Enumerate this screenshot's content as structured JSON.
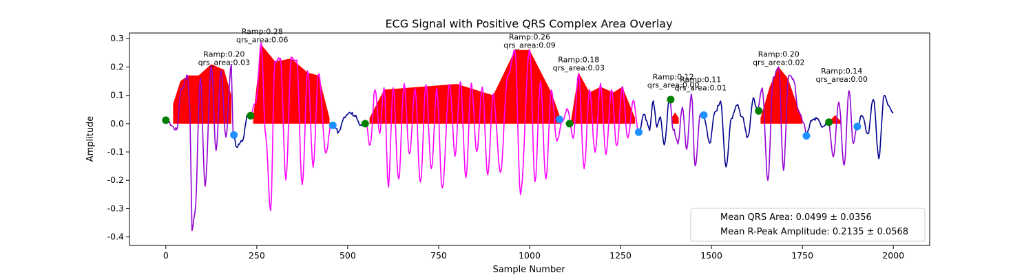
{
  "chart_data": {
    "type": "line",
    "title": "ECG Signal with Positive QRS Complex Area Overlay",
    "xlabel": "Sample Number",
    "ylabel": "Amplitude",
    "xlim": [
      -100,
      2100
    ],
    "ylim": [
      -0.43,
      0.32
    ],
    "xticks": [
      0,
      250,
      500,
      750,
      1000,
      1250,
      1500,
      1750,
      2000
    ],
    "yticks": [
      -0.4,
      -0.3,
      -0.2,
      -0.1,
      0.0,
      0.1,
      0.2,
      0.3
    ],
    "grid": false,
    "colors": {
      "baseline_signal": "#00008b",
      "qrs_segment": "#9400d3",
      "qrs_segment_alt": "#ff00ff",
      "positive_area": "#ff0000",
      "onset_marker": "#008000",
      "offset_marker": "#1e90ff"
    },
    "segments": [
      {
        "start": 0,
        "end": 185,
        "color": "#9400d3",
        "peaks": [
          [
            0,
            0.01
          ],
          [
            30,
            -0.02
          ],
          [
            42,
            0.12
          ],
          [
            60,
            0.17
          ],
          [
            66,
            0.05
          ],
          [
            72,
            -0.38
          ],
          [
            80,
            -0.31
          ],
          [
            95,
            0.16
          ],
          [
            108,
            -0.22
          ],
          [
            125,
            0.21
          ],
          [
            138,
            -0.1
          ],
          [
            152,
            0.19
          ],
          [
            165,
            -0.05
          ],
          [
            180,
            0.21
          ],
          [
            185,
            -0.04
          ]
        ],
        "onset": [
          0,
          0.012
        ],
        "offset": [
          187,
          -0.04
        ],
        "annotation": {
          "x": 160,
          "y": 0.2,
          "ramp": "Ramp:0.20",
          "area": "qrs_area:0.03"
        },
        "fill": [
          [
            20,
            0.07
          ],
          [
            40,
            0.15
          ],
          [
            62,
            0.17
          ],
          [
            90,
            0.17
          ],
          [
            125,
            0.21
          ],
          [
            160,
            0.19
          ],
          [
            180,
            0.1
          ]
        ]
      },
      {
        "start": 185,
        "end": 232,
        "color": "#00008b",
        "peaks": [
          [
            185,
            -0.04
          ],
          [
            195,
            -0.08
          ],
          [
            210,
            -0.06
          ],
          [
            225,
            0.03
          ],
          [
            232,
            0.03
          ]
        ]
      },
      {
        "start": 232,
        "end": 460,
        "color": "#ff00ff",
        "peaks": [
          [
            232,
            0.03
          ],
          [
            248,
            0.08
          ],
          [
            262,
            0.28
          ],
          [
            275,
            -0.05
          ],
          [
            288,
            -0.31
          ],
          [
            300,
            0.22
          ],
          [
            315,
            0.23
          ],
          [
            330,
            -0.2
          ],
          [
            345,
            0.23
          ],
          [
            360,
            0.22
          ],
          [
            375,
            -0.22
          ],
          [
            390,
            0.19
          ],
          [
            405,
            -0.15
          ],
          [
            420,
            0.18
          ],
          [
            440,
            -0.1
          ],
          [
            455,
            0.0
          ]
        ],
        "onset": [
          233,
          0.028
        ],
        "offset": [
          459,
          -0.006
        ],
        "annotation": {
          "x": 265,
          "y": 0.28,
          "ramp": "Ramp:0.28",
          "area": "qrs_area:0.06"
        },
        "fill": [
          [
            240,
            0.02
          ],
          [
            262,
            0.28
          ],
          [
            300,
            0.22
          ],
          [
            345,
            0.23
          ],
          [
            390,
            0.18
          ],
          [
            420,
            0.17
          ],
          [
            450,
            0.02
          ]
        ]
      },
      {
        "start": 460,
        "end": 550,
        "color": "#00008b",
        "peaks": [
          [
            460,
            0.0
          ],
          [
            475,
            -0.03
          ],
          [
            490,
            0.02
          ],
          [
            505,
            0.04
          ],
          [
            520,
            0.03
          ],
          [
            535,
            -0.01
          ],
          [
            550,
            0.0
          ]
        ]
      },
      {
        "start": 550,
        "end": 1090,
        "color": "#ff00ff",
        "peaks": [
          [
            550,
            0.0
          ],
          [
            562,
            -0.08
          ],
          [
            575,
            0.12
          ],
          [
            588,
            -0.03
          ],
          [
            600,
            0.13
          ],
          [
            612,
            -0.22
          ],
          [
            625,
            0.13
          ],
          [
            640,
            -0.2
          ],
          [
            655,
            0.14
          ],
          [
            670,
            -0.11
          ],
          [
            685,
            0.12
          ],
          [
            700,
            -0.21
          ],
          [
            715,
            0.14
          ],
          [
            730,
            -0.16
          ],
          [
            745,
            0.12
          ],
          [
            760,
            -0.23
          ],
          [
            780,
            0.14
          ],
          [
            795,
            -0.11
          ],
          [
            810,
            0.15
          ],
          [
            825,
            -0.19
          ],
          [
            840,
            0.14
          ],
          [
            855,
            -0.1
          ],
          [
            870,
            0.13
          ],
          [
            885,
            -0.18
          ],
          [
            900,
            0.1
          ],
          [
            920,
            -0.17
          ],
          [
            940,
            0.17
          ],
          [
            960,
            0.26
          ],
          [
            975,
            -0.25
          ],
          [
            1000,
            0.26
          ],
          [
            1015,
            -0.21
          ],
          [
            1030,
            0.15
          ],
          [
            1045,
            -0.2
          ],
          [
            1060,
            0.12
          ],
          [
            1075,
            -0.06
          ],
          [
            1090,
            0.01
          ]
        ],
        "onset": [
          548,
          0.0
        ],
        "offset": [
          1082,
          0.015
        ],
        "annotation": {
          "x": 1000,
          "y": 0.26,
          "ramp": "Ramp:0.26",
          "area": "qrs_area:0.09"
        },
        "fill": [
          [
            560,
            0.02
          ],
          [
            600,
            0.12
          ],
          [
            700,
            0.13
          ],
          [
            800,
            0.14
          ],
          [
            900,
            0.1
          ],
          [
            960,
            0.26
          ],
          [
            1000,
            0.26
          ],
          [
            1060,
            0.11
          ],
          [
            1085,
            0.02
          ]
        ]
      },
      {
        "start": 1090,
        "end": 1300,
        "color": "#ff00ff",
        "peaks": [
          [
            1090,
            0.01
          ],
          [
            1105,
            0.05
          ],
          [
            1120,
            -0.05
          ],
          [
            1135,
            0.18
          ],
          [
            1150,
            -0.16
          ],
          [
            1165,
            0.12
          ],
          [
            1180,
            -0.1
          ],
          [
            1195,
            0.14
          ],
          [
            1210,
            -0.11
          ],
          [
            1225,
            0.12
          ],
          [
            1240,
            -0.08
          ],
          [
            1255,
            0.13
          ],
          [
            1270,
            -0.05
          ],
          [
            1285,
            0.08
          ],
          [
            1300,
            -0.03
          ]
        ],
        "onset": [
          1110,
          0.0
        ],
        "offset": [
          1300,
          -0.03
        ],
        "annotation": {
          "x": 1135,
          "y": 0.18,
          "ramp": "Ramp:0.18",
          "area": "qrs_area:0.03"
        },
        "fill": [
          [
            1115,
            0.02
          ],
          [
            1135,
            0.18
          ],
          [
            1165,
            0.11
          ],
          [
            1195,
            0.13
          ],
          [
            1230,
            0.11
          ],
          [
            1255,
            0.13
          ],
          [
            1290,
            0.02
          ]
        ]
      },
      {
        "start": 1300,
        "end": 1385,
        "color": "#00008b",
        "peaks": [
          [
            1300,
            -0.03
          ],
          [
            1315,
            0.03
          ],
          [
            1330,
            -0.02
          ],
          [
            1340,
            0.08
          ],
          [
            1350,
            -0.01
          ],
          [
            1360,
            0.02
          ],
          [
            1370,
            -0.08
          ],
          [
            1385,
            0.09
          ]
        ]
      },
      {
        "start": 1385,
        "end": 1480,
        "color": "#9400d3",
        "peaks": [
          [
            1385,
            0.09
          ],
          [
            1395,
            -0.02
          ],
          [
            1408,
            -0.07
          ],
          [
            1420,
            0.06
          ],
          [
            1432,
            -0.09
          ],
          [
            1445,
            0.11
          ],
          [
            1455,
            -0.15
          ],
          [
            1470,
            0.04
          ],
          [
            1480,
            0.02
          ]
        ],
        "onset": [
          1388,
          0.085
        ],
        "offset": [
          1479,
          0.03
        ],
        "annotation": {
          "x": 1395,
          "y": 0.12,
          "ramp": "Ramp:0.12",
          "area": "qrs_area:0.00"
        },
        "fill": [
          [
            1390,
            0.02
          ],
          [
            1400,
            0.04
          ],
          [
            1410,
            0.02
          ]
        ]
      },
      {
        "start": 1480,
        "end": 1625,
        "color": "#00008b",
        "peaks": [
          [
            1480,
            0.02
          ],
          [
            1495,
            -0.07
          ],
          [
            1510,
            0.04
          ],
          [
            1525,
            0.08
          ],
          [
            1540,
            -0.15
          ],
          [
            1555,
            0.02
          ],
          [
            1570,
            0.07
          ],
          [
            1585,
            0.02
          ],
          [
            1600,
            -0.05
          ],
          [
            1615,
            0.09
          ],
          [
            1625,
            0.05
          ]
        ]
      },
      {
        "start": 1625,
        "end": 1760,
        "color": "#9400d3",
        "peaks": [
          [
            1625,
            0.05
          ],
          [
            1640,
            0.12
          ],
          [
            1655,
            -0.2
          ],
          [
            1670,
            0.16
          ],
          [
            1685,
            0.2
          ],
          [
            1698,
            -0.17
          ],
          [
            1712,
            0.17
          ],
          [
            1725,
            0.16
          ],
          [
            1740,
            0.04
          ],
          [
            1755,
            0.0
          ],
          [
            1760,
            -0.04
          ]
        ],
        "onset": [
          1630,
          0.045
        ],
        "offset": [
          1761,
          -0.043
        ],
        "annotation": {
          "x": 1685,
          "y": 0.2,
          "ramp": "Ramp:0.20",
          "area": "qrs_area:0.02"
        },
        "fill": [
          [
            1635,
            0.02
          ],
          [
            1660,
            0.13
          ],
          [
            1685,
            0.2
          ],
          [
            1710,
            0.16
          ],
          [
            1740,
            0.05
          ],
          [
            1750,
            0.01
          ]
        ]
      },
      {
        "start": 1760,
        "end": 1822,
        "color": "#00008b",
        "peaks": [
          [
            1760,
            -0.04
          ],
          [
            1775,
            0.01
          ],
          [
            1790,
            0.02
          ],
          [
            1805,
            -0.01
          ],
          [
            1822,
            0.0
          ]
        ]
      },
      {
        "start": 1822,
        "end": 1900,
        "color": "#9400d3",
        "peaks": [
          [
            1822,
            0.0
          ],
          [
            1835,
            -0.12
          ],
          [
            1850,
            0.08
          ],
          [
            1865,
            -0.15
          ],
          [
            1878,
            0.12
          ],
          [
            1890,
            -0.07
          ],
          [
            1900,
            -0.01
          ]
        ],
        "onset": [
          1823,
          0.005
        ],
        "offset": [
          1901,
          -0.01
        ],
        "annotation": {
          "x": 1858,
          "y": 0.14,
          "ramp": "Ramp:0.14",
          "area": "qrs_area:0.00"
        },
        "fill": [
          [
            1825,
            0.01
          ],
          [
            1840,
            0.03
          ],
          [
            1855,
            0.01
          ]
        ]
      },
      {
        "start": 1900,
        "end": 2000,
        "color": "#00008b",
        "peaks": [
          [
            1900,
            -0.01
          ],
          [
            1915,
            0.03
          ],
          [
            1930,
            -0.04
          ],
          [
            1945,
            0.09
          ],
          [
            1960,
            -0.12
          ],
          [
            1975,
            0.1
          ],
          [
            1990,
            0.06
          ],
          [
            2000,
            0.04
          ]
        ]
      }
    ],
    "extra_annotations": [
      {
        "x": 1470,
        "y": 0.11,
        "ramp": "Ramp:0.11",
        "area": "qrs_area:0.01"
      }
    ],
    "legend": {
      "placement": "lower-right",
      "entries": [
        "Mean QRS Area: 0.0499 ± 0.0356",
        "Mean R-Peak Amplitude: 0.2135 ± 0.0568"
      ]
    }
  }
}
